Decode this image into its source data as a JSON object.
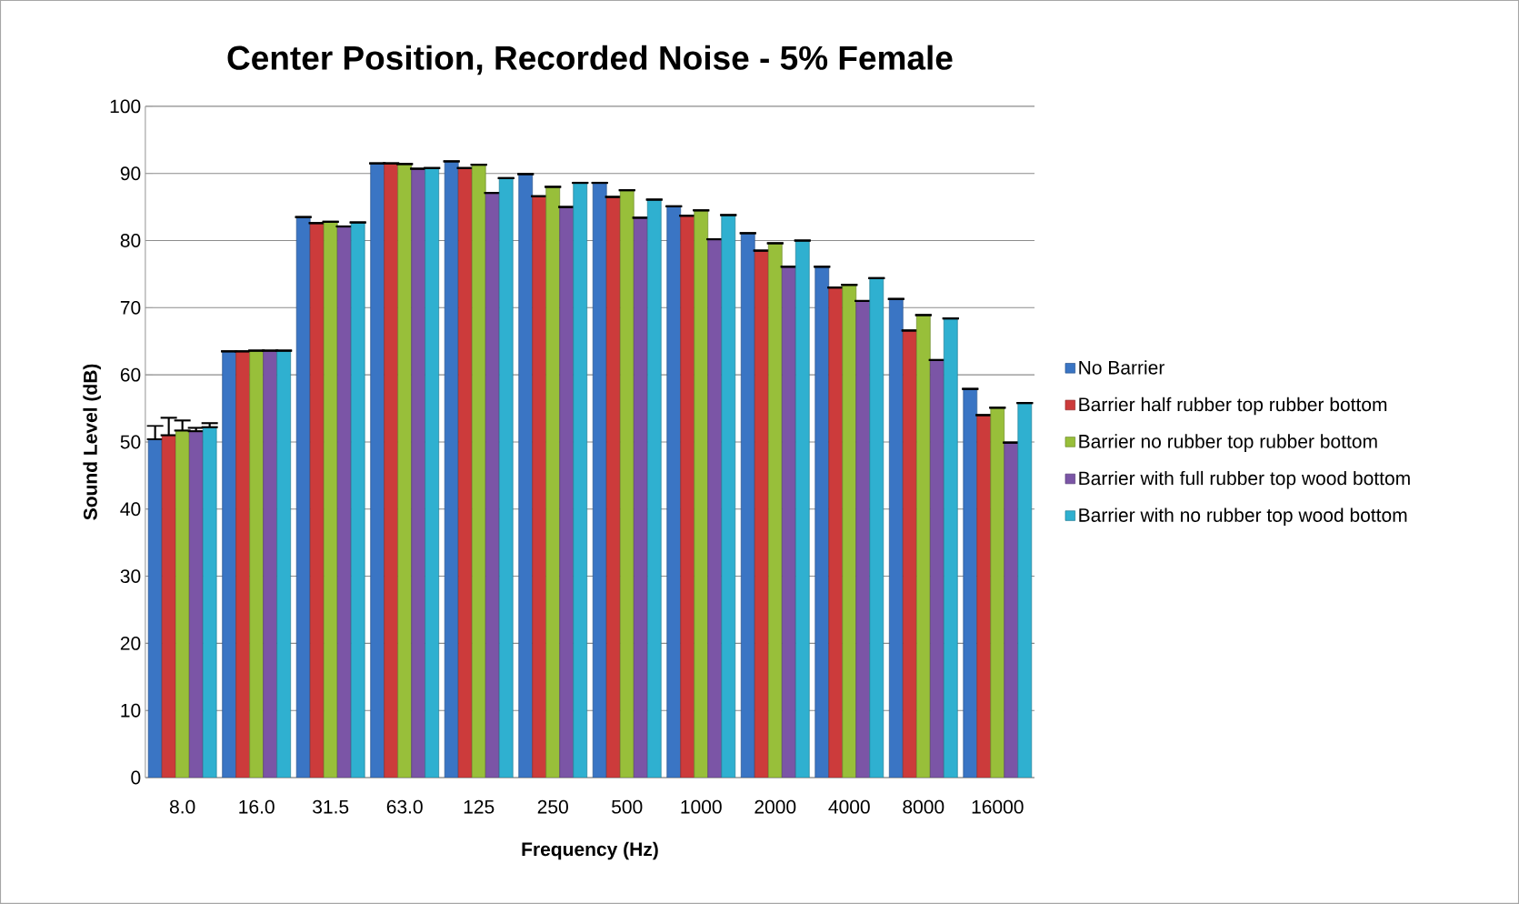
{
  "chart_data": {
    "type": "bar",
    "title": "Center Position, Recorded Noise - 5% Female",
    "xlabel": "Frequency (Hz)",
    "ylabel": "Sound Level (dB)",
    "categories": [
      "8.0",
      "16.0",
      "31.5",
      "63.0",
      "125",
      "250",
      "500",
      "1000",
      "2000",
      "4000",
      "8000",
      "16000"
    ],
    "series": [
      {
        "name": "No Barrier",
        "color": "#3a75c4",
        "values": [
          50.4,
          63.5,
          83.5,
          91.5,
          91.8,
          89.9,
          88.6,
          85.1,
          81.1,
          76.1,
          71.3,
          57.9
        ],
        "errors": [
          [
            50.4,
            52.4
          ],
          null,
          null,
          null,
          null,
          null,
          null,
          null,
          null,
          null,
          null,
          null
        ]
      },
      {
        "name": "Barrier half rubber top rubber bottom",
        "color": "#cc3b3b",
        "values": [
          51.0,
          63.5,
          82.6,
          91.5,
          90.8,
          86.6,
          86.5,
          83.7,
          78.5,
          73.0,
          66.6,
          54.0
        ],
        "errors": [
          [
            51.0,
            53.6
          ],
          null,
          null,
          null,
          null,
          null,
          null,
          null,
          null,
          null,
          null,
          null
        ]
      },
      {
        "name": "Barrier no rubber top rubber bottom",
        "color": "#98bf3a",
        "values": [
          51.7,
          63.6,
          82.8,
          91.4,
          91.3,
          88.0,
          87.5,
          84.5,
          79.6,
          73.4,
          68.9,
          55.1
        ],
        "errors": [
          [
            51.7,
            53.2
          ],
          null,
          null,
          null,
          null,
          null,
          null,
          null,
          null,
          null,
          null,
          null
        ]
      },
      {
        "name": "Barrier with full rubber top wood bottom",
        "color": "#7b55a6",
        "values": [
          51.6,
          63.6,
          82.1,
          90.7,
          87.1,
          85.0,
          83.4,
          80.2,
          76.1,
          71.0,
          62.2,
          49.9
        ],
        "errors": [
          [
            51.6,
            52.1
          ],
          null,
          null,
          null,
          null,
          null,
          null,
          null,
          null,
          null,
          null,
          null
        ]
      },
      {
        "name": "Barrier with no rubber top wood bottom",
        "color": "#2fb0d0",
        "values": [
          52.2,
          63.6,
          82.7,
          90.8,
          89.3,
          88.6,
          86.1,
          83.8,
          80.0,
          74.4,
          68.4,
          55.8
        ],
        "errors": [
          [
            52.2,
            52.8
          ],
          null,
          null,
          null,
          null,
          null,
          null,
          null,
          null,
          null,
          null,
          null
        ]
      }
    ],
    "ylim": [
      0,
      100
    ],
    "yticks": [
      0,
      10,
      20,
      30,
      40,
      50,
      60,
      70,
      80,
      90,
      100
    ],
    "grid": "y",
    "legend": "right"
  }
}
